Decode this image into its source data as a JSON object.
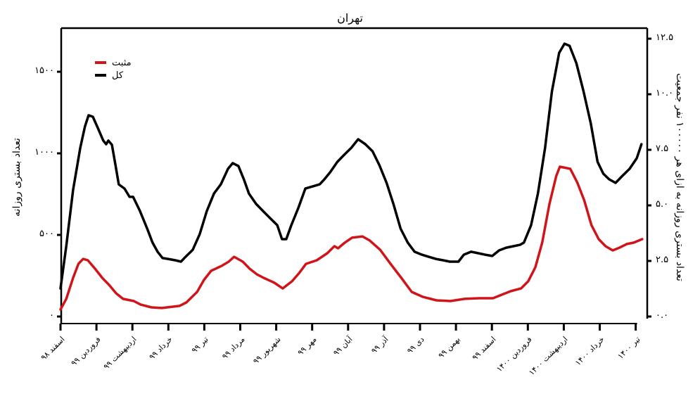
{
  "chart_data": {
    "type": "line",
    "title": "تهران",
    "xlabel": "",
    "ylabel": "تعداد بستری روزانه",
    "ylabel_right": "تعداد بستری روزانه به ازای هر ۱۰۰۰۰۰ نفر جمعیت",
    "ylim": [
      0,
      1500
    ],
    "ylim_right": [
      0.0,
      12.5
    ],
    "y_ticks": [
      "۰",
      "۵۰۰",
      "۱۰۰۰",
      "۱۵۰۰"
    ],
    "y_ticks_right": [
      "۰.۰",
      "۲.۵",
      "۵.۰",
      "۷.۵",
      "۱۰.۰",
      "۱۲.۵"
    ],
    "categories": [
      "اسفند ۹۸",
      "فروردین ۹۹",
      "اردیبهشت ۹۹",
      "خرداد ۹۹",
      "تیر ۹۹",
      "مرداد ۹۹",
      "شهریور ۹۹",
      "مهر ۹۹",
      "آبان ۹۹",
      "آذر ۹۹",
      "دی ۹۹",
      "بهمن ۹۹",
      "اسفند ۹۹",
      "فروردین ۱۴۰۰",
      "اردیبهشت ۱۴۰۰",
      "خرداد ۱۴۰۰",
      "تیر ۱۴۰۰"
    ],
    "grid": false,
    "legend_position": "upper-left",
    "series": [
      {
        "name": "مثبت",
        "color": "#d0141a",
        "points": [
          [
            0.0,
            43
          ],
          [
            0.16,
            108
          ],
          [
            0.35,
            237
          ],
          [
            0.5,
            323
          ],
          [
            0.63,
            353
          ],
          [
            0.76,
            345
          ],
          [
            0.96,
            293
          ],
          [
            1.16,
            237
          ],
          [
            1.35,
            194
          ],
          [
            1.55,
            142
          ],
          [
            1.74,
            108
          ],
          [
            2.04,
            95
          ],
          [
            2.23,
            73
          ],
          [
            2.53,
            56
          ],
          [
            2.82,
            52
          ],
          [
            3.11,
            60
          ],
          [
            3.31,
            65
          ],
          [
            3.5,
            86
          ],
          [
            3.8,
            151
          ],
          [
            3.99,
            224
          ],
          [
            4.19,
            280
          ],
          [
            4.48,
            310
          ],
          [
            4.68,
            336
          ],
          [
            4.83,
            366
          ],
          [
            5.07,
            336
          ],
          [
            5.26,
            293
          ],
          [
            5.46,
            259
          ],
          [
            5.65,
            237
          ],
          [
            5.95,
            207
          ],
          [
            6.18,
            172
          ],
          [
            6.44,
            216
          ],
          [
            6.64,
            267
          ],
          [
            6.83,
            323
          ],
          [
            7.13,
            345
          ],
          [
            7.42,
            388
          ],
          [
            7.62,
            431
          ],
          [
            7.72,
            418
          ],
          [
            7.91,
            453
          ],
          [
            8.11,
            483
          ],
          [
            8.4,
            491
          ],
          [
            8.6,
            466
          ],
          [
            8.89,
            409
          ],
          [
            9.18,
            323
          ],
          [
            9.48,
            237
          ],
          [
            9.77,
            151
          ],
          [
            10.07,
            121
          ],
          [
            10.46,
            99
          ],
          [
            10.85,
            95
          ],
          [
            11.24,
            108
          ],
          [
            11.64,
            112
          ],
          [
            12.03,
            112
          ],
          [
            12.22,
            129
          ],
          [
            12.52,
            155
          ],
          [
            12.81,
            172
          ],
          [
            13.01,
            216
          ],
          [
            13.21,
            302
          ],
          [
            13.4,
            453
          ],
          [
            13.6,
            690
          ],
          [
            13.79,
            862
          ],
          [
            13.89,
            918
          ],
          [
            14.18,
            905
          ],
          [
            14.38,
            819
          ],
          [
            14.57,
            711
          ],
          [
            14.77,
            560
          ],
          [
            14.97,
            474
          ],
          [
            15.16,
            431
          ],
          [
            15.36,
            405
          ],
          [
            15.55,
            422
          ],
          [
            15.75,
            444
          ],
          [
            15.95,
            453
          ],
          [
            16.18,
            474
          ]
        ]
      },
      {
        "name": "کل",
        "color": "#000000",
        "points": [
          [
            0.0,
            172
          ],
          [
            0.16,
            431
          ],
          [
            0.35,
            776
          ],
          [
            0.55,
            1034
          ],
          [
            0.68,
            1164
          ],
          [
            0.78,
            1233
          ],
          [
            0.9,
            1224
          ],
          [
            1.04,
            1155
          ],
          [
            1.19,
            1078
          ],
          [
            1.27,
            1056
          ],
          [
            1.33,
            1078
          ],
          [
            1.43,
            1052
          ],
          [
            1.53,
            927
          ],
          [
            1.62,
            810
          ],
          [
            1.78,
            784
          ],
          [
            1.92,
            733
          ],
          [
            2.02,
            733
          ],
          [
            2.21,
            647
          ],
          [
            2.41,
            539
          ],
          [
            2.56,
            453
          ],
          [
            2.7,
            397
          ],
          [
            2.84,
            358
          ],
          [
            2.99,
            353
          ],
          [
            3.19,
            345
          ],
          [
            3.35,
            336
          ],
          [
            3.48,
            366
          ],
          [
            3.68,
            409
          ],
          [
            3.87,
            504
          ],
          [
            4.07,
            647
          ],
          [
            4.27,
            754
          ],
          [
            4.46,
            810
          ],
          [
            4.66,
            905
          ],
          [
            4.79,
            940
          ],
          [
            4.95,
            922
          ],
          [
            5.1,
            841
          ],
          [
            5.24,
            754
          ],
          [
            5.44,
            690
          ],
          [
            5.63,
            647
          ],
          [
            5.83,
            603
          ],
          [
            6.03,
            560
          ],
          [
            6.16,
            474
          ],
          [
            6.28,
            474
          ],
          [
            6.42,
            560
          ],
          [
            6.62,
            668
          ],
          [
            6.81,
            784
          ],
          [
            7.01,
            797
          ],
          [
            7.21,
            810
          ],
          [
            7.34,
            841
          ],
          [
            7.5,
            884
          ],
          [
            7.7,
            948
          ],
          [
            7.89,
            991
          ],
          [
            8.09,
            1034
          ],
          [
            8.28,
            1086
          ],
          [
            8.48,
            1056
          ],
          [
            8.68,
            1013
          ],
          [
            8.87,
            927
          ],
          [
            9.07,
            819
          ],
          [
            9.26,
            690
          ],
          [
            9.46,
            539
          ],
          [
            9.66,
            453
          ],
          [
            9.85,
            397
          ],
          [
            10.05,
            379
          ],
          [
            10.24,
            366
          ],
          [
            10.44,
            353
          ],
          [
            10.64,
            345
          ],
          [
            10.83,
            336
          ],
          [
            11.07,
            336
          ],
          [
            11.22,
            379
          ],
          [
            11.42,
            397
          ],
          [
            11.62,
            388
          ],
          [
            11.81,
            379
          ],
          [
            12.01,
            371
          ],
          [
            12.2,
            405
          ],
          [
            12.4,
            422
          ],
          [
            12.6,
            431
          ],
          [
            12.79,
            440
          ],
          [
            12.89,
            453
          ],
          [
            13.09,
            560
          ],
          [
            13.28,
            754
          ],
          [
            13.48,
            1034
          ],
          [
            13.67,
            1379
          ],
          [
            13.87,
            1616
          ],
          [
            14.02,
            1672
          ],
          [
            14.16,
            1659
          ],
          [
            14.35,
            1552
          ],
          [
            14.55,
            1379
          ],
          [
            14.75,
            1185
          ],
          [
            14.94,
            948
          ],
          [
            15.1,
            875
          ],
          [
            15.26,
            841
          ],
          [
            15.44,
            819
          ],
          [
            15.63,
            862
          ],
          [
            15.83,
            905
          ],
          [
            16.03,
            970
          ],
          [
            16.16,
            1056
          ]
        ]
      }
    ]
  },
  "legend": {
    "items": [
      {
        "label": "مثبت",
        "color": "#d0141a"
      },
      {
        "label": "کل",
        "color": "#000000"
      }
    ]
  }
}
